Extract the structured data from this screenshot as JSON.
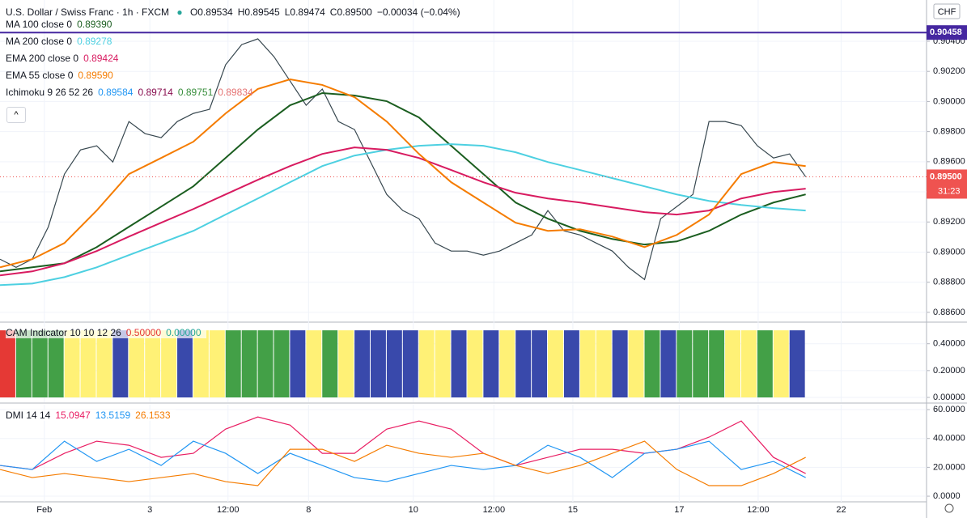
{
  "header": {
    "title": "U.S. Dollar / Swiss Franc · 1h · FXCM",
    "ohlc": [
      "O0.89534",
      "H0.89545",
      "L0.89474",
      "C0.89500",
      "−0.00034 (−0.04%)"
    ],
    "currency": "CHF",
    "ichimoku": {
      "name": "Ichimoku 9 26 52 26",
      "values": [
        "0.89584",
        "0.89714",
        "0.89751",
        "0.89834"
      ],
      "colors": [
        "#2196f3",
        "#880e4f",
        "#388e3c",
        "#e57373"
      ]
    }
  },
  "chart_data": [
    {
      "type": "line",
      "xlim": [
        0,
        115
      ],
      "ylim": [
        0.88535,
        0.90674
      ],
      "xticks": [
        {
          "value": 5.5,
          "label": "Feb"
        },
        {
          "value": 18.6,
          "label": "3"
        },
        {
          "value": 28.3,
          "label": "12:00"
        },
        {
          "value": 38.3,
          "label": "8"
        },
        {
          "value": 51.3,
          "label": "10"
        },
        {
          "value": 61.3,
          "label": "12:00"
        },
        {
          "value": 71.1,
          "label": "15"
        },
        {
          "value": 84.3,
          "label": "17"
        },
        {
          "value": 94.1,
          "label": "12:00"
        },
        {
          "value": 104.4,
          "label": "22"
        }
      ],
      "yticks": [
        {
          "value": 0.904,
          "label": "0.90400"
        },
        {
          "value": 0.902,
          "label": "0.90200"
        },
        {
          "value": 0.9,
          "label": "0.90000"
        },
        {
          "value": 0.898,
          "label": "0.89800"
        },
        {
          "value": 0.896,
          "label": "0.89600"
        },
        {
          "value": 0.894,
          "label": "0.89400"
        },
        {
          "value": 0.892,
          "label": "0.89200"
        },
        {
          "value": 0.89,
          "label": "0.89000"
        },
        {
          "value": 0.888,
          "label": "0.88800"
        },
        {
          "value": 0.886,
          "label": "0.88600"
        }
      ],
      "hline": {
        "value": 0.90458,
        "label": "0.90458",
        "color": "#4527a0"
      },
      "last_price": {
        "value": 0.895,
        "label": "0.89500",
        "color": "#ef5350"
      },
      "countdown": "31:23",
      "series": [
        {
          "color": "#37474f",
          "x": [
            0,
            2,
            4,
            6,
            8,
            10,
            12,
            14,
            16,
            18,
            20,
            22,
            24,
            26,
            28,
            30,
            32,
            34,
            36,
            38,
            40,
            42,
            44,
            46,
            48,
            50,
            52,
            54,
            56,
            58,
            60,
            62,
            64,
            66,
            68,
            70,
            72,
            74,
            76,
            78,
            80,
            82,
            84,
            86,
            88,
            90,
            92,
            94,
            96,
            98,
            100
          ],
          "values": [
            0.88953,
            0.88899,
            0.88953,
            0.89168,
            0.89518,
            0.89679,
            0.89706,
            0.89598,
            0.89867,
            0.89787,
            0.8976,
            0.89867,
            0.89921,
            0.89948,
            0.90244,
            0.90378,
            0.90416,
            0.90298,
            0.90136,
            0.89975,
            0.90083,
            0.89867,
            0.89814,
            0.89598,
            0.89383,
            0.89276,
            0.89222,
            0.8906,
            0.89007,
            0.89007,
            0.8898,
            0.89007,
            0.8906,
            0.89114,
            0.89276,
            0.89141,
            0.89114,
            0.8906,
            0.89007,
            0.88899,
            0.88818,
            0.89222,
            0.89302,
            0.89383,
            0.89867,
            0.89867,
            0.8984,
            0.89706,
            0.89625,
            0.89652,
            0.895
          ]
        },
        {
          "name": "MA 100 close 0",
          "value_label": "0.89390",
          "color": "#1b5e20",
          "x": [
            0,
            4,
            8,
            12,
            16,
            20,
            24,
            28,
            32,
            36,
            40,
            44,
            48,
            52,
            56,
            60,
            64,
            68,
            72,
            76,
            80,
            84,
            88,
            92,
            96,
            100
          ],
          "values": [
            0.88872,
            0.88899,
            0.88926,
            0.89033,
            0.89168,
            0.89302,
            0.89437,
            0.89625,
            0.89814,
            0.89975,
            0.90056,
            0.9004,
            0.90002,
            0.89894,
            0.89706,
            0.89518,
            0.89329,
            0.89222,
            0.89141,
            0.89087,
            0.8905,
            0.89071,
            0.89141,
            0.89249,
            0.89329,
            0.89383
          ]
        },
        {
          "name": "MA 200 close 0",
          "value_label": "0.89278",
          "color": "#4dd0e1",
          "x": [
            0,
            4,
            8,
            12,
            16,
            20,
            24,
            28,
            32,
            36,
            40,
            44,
            48,
            52,
            56,
            60,
            64,
            68,
            72,
            76,
            80,
            84,
            88,
            92,
            96,
            100
          ],
          "values": [
            0.88781,
            0.88791,
            0.88834,
            0.88899,
            0.8898,
            0.8906,
            0.89141,
            0.89249,
            0.89356,
            0.89464,
            0.89571,
            0.89641,
            0.89679,
            0.89706,
            0.89717,
            0.89706,
            0.89663,
            0.89598,
            0.89545,
            0.89491,
            0.89437,
            0.89383,
            0.8934,
            0.89313,
            0.89292,
            0.89276
          ]
        },
        {
          "name": "EMA 200 close 0",
          "value_label": "0.89424",
          "color": "#d81b60",
          "x": [
            0,
            4,
            8,
            12,
            16,
            20,
            24,
            28,
            32,
            36,
            40,
            44,
            48,
            52,
            56,
            60,
            64,
            68,
            72,
            76,
            80,
            84,
            88,
            92,
            96,
            100
          ],
          "values": [
            0.88845,
            0.88872,
            0.88926,
            0.89007,
            0.89103,
            0.89195,
            0.89286,
            0.89383,
            0.8948,
            0.89571,
            0.89652,
            0.89695,
            0.89679,
            0.89625,
            0.89545,
            0.89464,
            0.89394,
            0.89356,
            0.89329,
            0.89297,
            0.89265,
            0.89249,
            0.89276,
            0.89356,
            0.89399,
            0.89421
          ]
        },
        {
          "name": "EMA 55 close 0",
          "value_label": "0.89590",
          "color": "#f57c00",
          "x": [
            0,
            4,
            8,
            12,
            16,
            20,
            24,
            28,
            32,
            36,
            40,
            44,
            48,
            52,
            56,
            60,
            64,
            68,
            72,
            76,
            80,
            84,
            88,
            92,
            96,
            100
          ],
          "values": [
            0.88899,
            0.88953,
            0.8906,
            0.89276,
            0.89518,
            0.89625,
            0.89733,
            0.89921,
            0.90083,
            0.90147,
            0.9011,
            0.90029,
            0.89867,
            0.89652,
            0.89464,
            0.89329,
            0.89195,
            0.89141,
            0.89152,
            0.89103,
            0.89033,
            0.89114,
            0.89249,
            0.89518,
            0.89598,
            0.89571
          ]
        }
      ]
    },
    {
      "type": "bar",
      "title": "CAM Indicator 10 10 12 26",
      "legend_values": [
        {
          "label": "0.50000",
          "color": "#e53935"
        },
        {
          "label": "0.00000",
          "color": "#26a69a"
        }
      ],
      "xlim": [
        0,
        115
      ],
      "ylim": [
        -0.036,
        0.561
      ],
      "yticks": [
        {
          "value": 0.4,
          "label": "0.40000"
        },
        {
          "value": 0.2,
          "label": "0.20000"
        },
        {
          "value": 0,
          "label": "0.00000"
        }
      ],
      "x": [
        0,
        2,
        4,
        6,
        8,
        10,
        12,
        14,
        16,
        18,
        20,
        22,
        24,
        26,
        28,
        30,
        32,
        34,
        36,
        38,
        40,
        42,
        44,
        46,
        48,
        50,
        52,
        54,
        56,
        58,
        60,
        62,
        64,
        66,
        68,
        70,
        72,
        74,
        76,
        78,
        80,
        82,
        84,
        86,
        88,
        90,
        92,
        94,
        96,
        98
      ],
      "values": [
        0.5,
        0.5,
        0.5,
        0.5,
        0.5,
        0.5,
        0.5,
        0.5,
        0.5,
        0.5,
        0.5,
        0.5,
        0.5,
        0.5,
        0.5,
        0.5,
        0.5,
        0.5,
        0.5,
        0.5,
        0.5,
        0.5,
        0.5,
        0.5,
        0.5,
        0.5,
        0.5,
        0.5,
        0.5,
        0.5,
        0.5,
        0.5,
        0.5,
        0.5,
        0.5,
        0.5,
        0.5,
        0.5,
        0.5,
        0.5,
        0.5,
        0.5,
        0.5,
        0.5,
        0.5,
        0.5,
        0.5,
        0.5,
        0.5,
        0.5
      ],
      "colors": [
        "#e53935",
        "#43a047",
        "#43a047",
        "#43a047",
        "#fff176",
        "#fff176",
        "#fff176",
        "#3949ab",
        "#fff176",
        "#fff176",
        "#fff176",
        "#3949ab",
        "#fff176",
        "#fff176",
        "#43a047",
        "#43a047",
        "#43a047",
        "#43a047",
        "#3949ab",
        "#fff176",
        "#43a047",
        "#fff176",
        "#3949ab",
        "#3949ab",
        "#3949ab",
        "#3949ab",
        "#fff176",
        "#fff176",
        "#3949ab",
        "#fff176",
        "#3949ab",
        "#fff176",
        "#3949ab",
        "#3949ab",
        "#fff176",
        "#3949ab",
        "#fff176",
        "#fff176",
        "#3949ab",
        "#fff176",
        "#43a047",
        "#3949ab",
        "#43a047",
        "#43a047",
        "#43a047",
        "#fff176",
        "#fff176",
        "#43a047",
        "#fff176",
        "#3949ab"
      ]
    },
    {
      "type": "line",
      "title": "DMI 14 14",
      "xlim": [
        0,
        115
      ],
      "ylim": [
        -3.9,
        63.4
      ],
      "yticks": [
        {
          "value": 60,
          "label": "60.0000"
        },
        {
          "value": 40,
          "label": "40.0000"
        },
        {
          "value": 20,
          "label": "20.0000"
        },
        {
          "value": 0,
          "label": "0.0000"
        }
      ],
      "series": [
        {
          "value_label": "15.0947",
          "color": "#e91e63",
          "x": [
            0,
            4,
            8,
            12,
            16,
            20,
            24,
            28,
            32,
            36,
            40,
            44,
            48,
            52,
            56,
            60,
            64,
            68,
            72,
            76,
            80,
            84,
            88,
            92,
            96,
            100
          ],
          "values": [
            21.3,
            18.5,
            29.7,
            38.1,
            35.3,
            26.9,
            29.7,
            46.5,
            54.9,
            49.3,
            29.7,
            29.7,
            46.5,
            52.1,
            46.5,
            29.7,
            21.3,
            26.9,
            32.5,
            32.5,
            29.7,
            32.5,
            40.9,
            52.1,
            26.9,
            15.7
          ]
        },
        {
          "value_label": "13.5159",
          "color": "#2196f3",
          "x": [
            0,
            4,
            8,
            12,
            16,
            20,
            24,
            28,
            32,
            36,
            40,
            44,
            48,
            52,
            56,
            60,
            64,
            68,
            72,
            76,
            80,
            84,
            88,
            92,
            96,
            100
          ],
          "values": [
            21.3,
            18.5,
            38.1,
            24.1,
            32.5,
            21.3,
            38.1,
            29.7,
            15.7,
            29.7,
            21.3,
            12.9,
            10.1,
            15.7,
            21.3,
            18.5,
            21.3,
            35.3,
            26.9,
            12.9,
            29.7,
            32.5,
            38.1,
            18.5,
            24.1,
            12.9
          ]
        },
        {
          "value_label": "26.1533",
          "color": "#f57c00",
          "x": [
            0,
            4,
            8,
            12,
            16,
            20,
            24,
            28,
            32,
            36,
            40,
            44,
            48,
            52,
            56,
            60,
            64,
            68,
            72,
            76,
            80,
            84,
            88,
            92,
            96,
            100
          ],
          "values": [
            18.5,
            12.9,
            15.7,
            12.9,
            10.1,
            12.9,
            15.7,
            10.1,
            7.3,
            32.5,
            32.5,
            24.1,
            35.3,
            29.7,
            26.9,
            29.7,
            21.3,
            15.7,
            21.3,
            29.7,
            38.1,
            18.5,
            7.3,
            7.3,
            15.7,
            26.9
          ]
        }
      ]
    }
  ]
}
